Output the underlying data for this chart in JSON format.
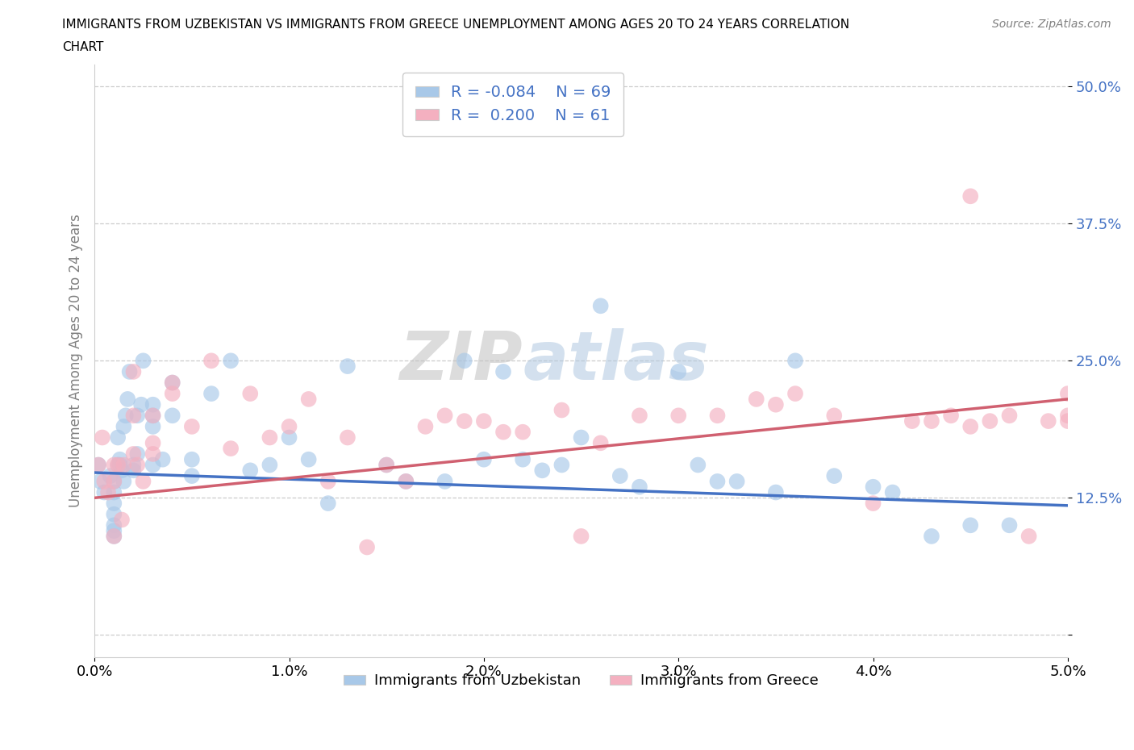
{
  "title_line1": "IMMIGRANTS FROM UZBEKISTAN VS IMMIGRANTS FROM GREECE UNEMPLOYMENT AMONG AGES 20 TO 24 YEARS CORRELATION",
  "title_line2": "CHART",
  "source": "Source: ZipAtlas.com",
  "ylabel": "Unemployment Among Ages 20 to 24 years",
  "xlabel_blue": "Immigrants from Uzbekistan",
  "xlabel_pink": "Immigrants from Greece",
  "xlim": [
    0.0,
    0.05
  ],
  "ylim": [
    -0.02,
    0.52
  ],
  "yticks": [
    0.0,
    0.125,
    0.25,
    0.375,
    0.5
  ],
  "ytick_labels": [
    "",
    "12.5%",
    "25.0%",
    "37.5%",
    "50.0%"
  ],
  "xticks": [
    0.0,
    0.01,
    0.02,
    0.03,
    0.04,
    0.05
  ],
  "xtick_labels": [
    "0.0%",
    "1.0%",
    "2.0%",
    "3.0%",
    "4.0%",
    "5.0%"
  ],
  "legend_R_blue": "R = -0.084",
  "legend_N_blue": "N = 69",
  "legend_R_pink": "R =  0.200",
  "legend_N_pink": "N = 61",
  "blue_color": "#a8c8e8",
  "pink_color": "#f4b0c0",
  "blue_line_color": "#4472c4",
  "pink_line_color": "#d06070",
  "watermark_zip": "ZIP",
  "watermark_atlas": "atlas",
  "blue_scatter_x": [
    0.0002,
    0.0003,
    0.0005,
    0.0008,
    0.001,
    0.001,
    0.001,
    0.001,
    0.001,
    0.001,
    0.001,
    0.0012,
    0.0012,
    0.0013,
    0.0013,
    0.0014,
    0.0015,
    0.0015,
    0.0016,
    0.0017,
    0.0018,
    0.002,
    0.002,
    0.0022,
    0.0022,
    0.0024,
    0.0025,
    0.003,
    0.003,
    0.003,
    0.003,
    0.0035,
    0.004,
    0.004,
    0.005,
    0.005,
    0.006,
    0.007,
    0.008,
    0.009,
    0.01,
    0.011,
    0.012,
    0.013,
    0.015,
    0.016,
    0.018,
    0.019,
    0.02,
    0.021,
    0.022,
    0.023,
    0.024,
    0.025,
    0.026,
    0.027,
    0.028,
    0.03,
    0.031,
    0.032,
    0.033,
    0.035,
    0.036,
    0.038,
    0.04,
    0.041,
    0.043,
    0.045,
    0.047
  ],
  "blue_scatter_y": [
    0.155,
    0.14,
    0.13,
    0.145,
    0.14,
    0.13,
    0.12,
    0.11,
    0.1,
    0.095,
    0.09,
    0.155,
    0.18,
    0.16,
    0.155,
    0.15,
    0.14,
    0.19,
    0.2,
    0.215,
    0.24,
    0.155,
    0.15,
    0.165,
    0.2,
    0.21,
    0.25,
    0.19,
    0.2,
    0.21,
    0.155,
    0.16,
    0.23,
    0.2,
    0.16,
    0.145,
    0.22,
    0.25,
    0.15,
    0.155,
    0.18,
    0.16,
    0.12,
    0.245,
    0.155,
    0.14,
    0.14,
    0.25,
    0.16,
    0.24,
    0.16,
    0.15,
    0.155,
    0.18,
    0.3,
    0.145,
    0.135,
    0.24,
    0.155,
    0.14,
    0.14,
    0.13,
    0.25,
    0.145,
    0.135,
    0.13,
    0.09,
    0.1,
    0.1
  ],
  "pink_scatter_x": [
    0.0002,
    0.0004,
    0.0005,
    0.0007,
    0.001,
    0.001,
    0.001,
    0.0012,
    0.0014,
    0.0015,
    0.002,
    0.002,
    0.002,
    0.0022,
    0.0025,
    0.003,
    0.003,
    0.003,
    0.004,
    0.004,
    0.005,
    0.006,
    0.007,
    0.008,
    0.009,
    0.01,
    0.011,
    0.012,
    0.013,
    0.014,
    0.015,
    0.016,
    0.017,
    0.018,
    0.019,
    0.02,
    0.021,
    0.022,
    0.024,
    0.025,
    0.026,
    0.028,
    0.03,
    0.032,
    0.034,
    0.035,
    0.036,
    0.038,
    0.04,
    0.042,
    0.043,
    0.044,
    0.045,
    0.046,
    0.047,
    0.048,
    0.049,
    0.05,
    0.05,
    0.05,
    0.045
  ],
  "pink_scatter_y": [
    0.155,
    0.18,
    0.14,
    0.13,
    0.155,
    0.14,
    0.09,
    0.155,
    0.105,
    0.155,
    0.24,
    0.2,
    0.165,
    0.155,
    0.14,
    0.2,
    0.175,
    0.165,
    0.23,
    0.22,
    0.19,
    0.25,
    0.17,
    0.22,
    0.18,
    0.19,
    0.215,
    0.14,
    0.18,
    0.08,
    0.155,
    0.14,
    0.19,
    0.2,
    0.195,
    0.195,
    0.185,
    0.185,
    0.205,
    0.09,
    0.175,
    0.2,
    0.2,
    0.2,
    0.215,
    0.21,
    0.22,
    0.2,
    0.12,
    0.195,
    0.195,
    0.2,
    0.19,
    0.195,
    0.2,
    0.09,
    0.195,
    0.22,
    0.2,
    0.195,
    0.4
  ],
  "blue_trendline_x": [
    0.0,
    0.05
  ],
  "blue_trendline_y": [
    0.148,
    0.118
  ],
  "pink_trendline_x": [
    0.0,
    0.05
  ],
  "pink_trendline_y": [
    0.125,
    0.215
  ]
}
